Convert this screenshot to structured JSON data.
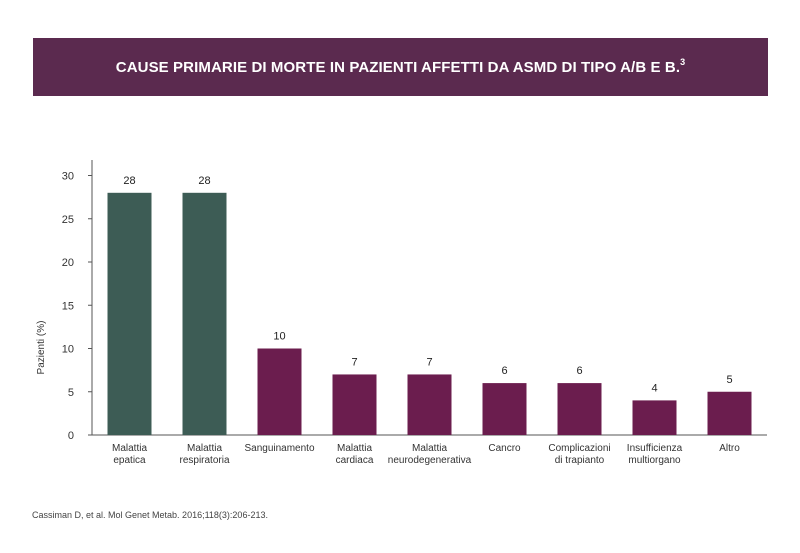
{
  "title": "CAUSE PRIMARIE DI MORTE IN PAZIENTI AFFETTI DA ASMD DI TIPO A/B E B.",
  "title_sup": "3",
  "citation": "Cassiman D, et al. Mol Genet Metab. 2016;118(3):206-213.",
  "colors": {
    "banner": "#5b2a4f",
    "highlight_bar": "#3d5c55",
    "bar": "#6b1d4e"
  },
  "chart_data": {
    "type": "bar",
    "ylabel": "Pazienti (%)",
    "xlabel": "",
    "ylim": [
      0,
      32
    ],
    "yticks": [
      0,
      5,
      10,
      15,
      20,
      25,
      30
    ],
    "grid": false,
    "categories": [
      [
        "Malattia",
        "epatica"
      ],
      [
        "Malattia",
        "respiratoria"
      ],
      [
        "Sanguinamento"
      ],
      [
        "Malattia",
        "cardiaca"
      ],
      [
        "Malattia",
        "neurodegenerativa"
      ],
      [
        "Cancro"
      ],
      [
        "Complicazioni",
        "di trapianto"
      ],
      [
        "Insufficienza",
        "multiorgano"
      ],
      [
        "Altro"
      ]
    ],
    "values": [
      28,
      28,
      10,
      7,
      7,
      6,
      6,
      4,
      5
    ],
    "value_labels": [
      "28",
      "28",
      "10",
      "7",
      "7",
      "6",
      "6",
      "4",
      "5"
    ],
    "highlighted": [
      true,
      true,
      false,
      false,
      false,
      false,
      false,
      false,
      false
    ]
  }
}
